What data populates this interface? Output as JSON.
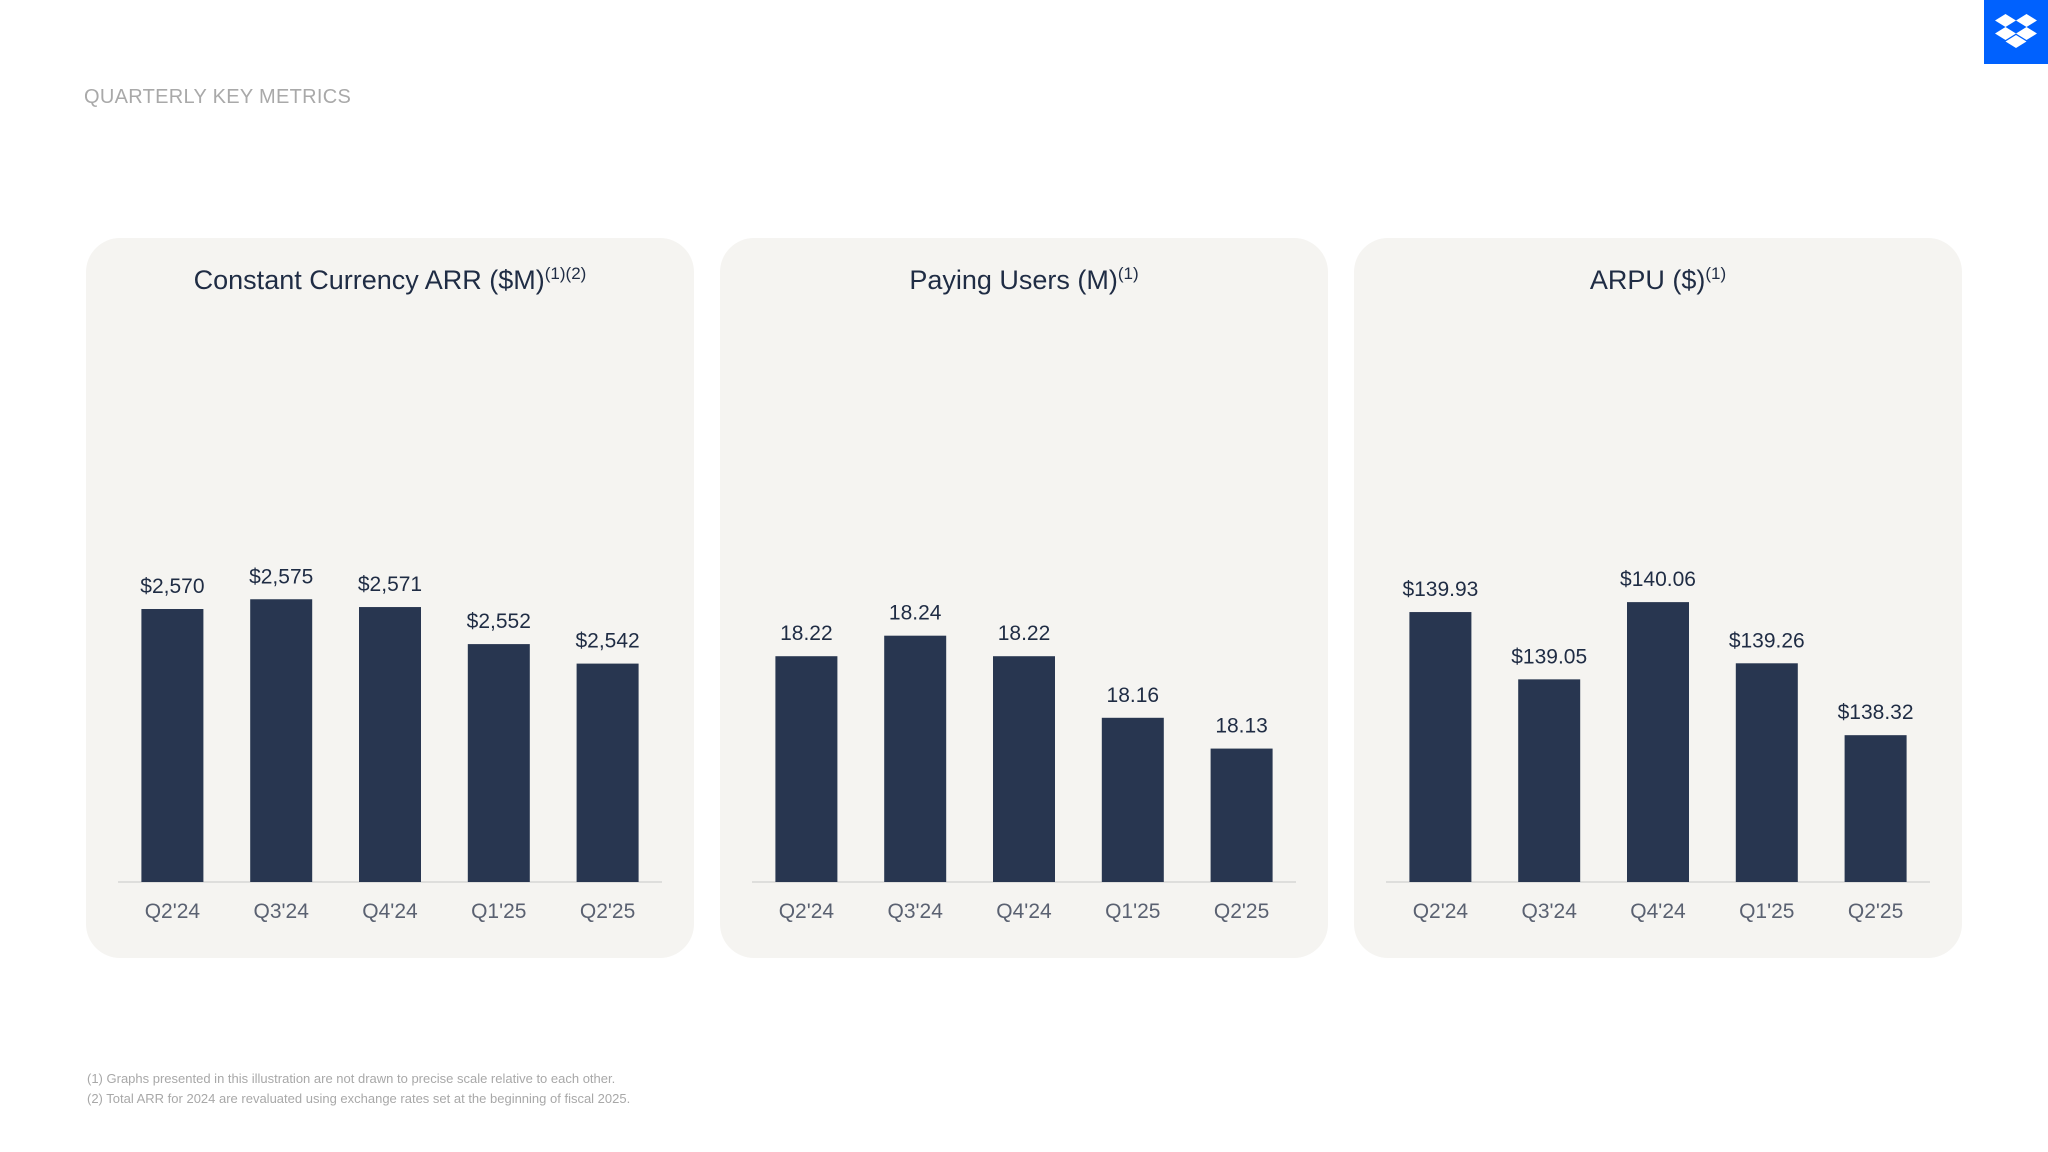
{
  "page_title": "QUARTERLY KEY METRICS",
  "logo_icon": "dropbox-logo-icon",
  "colors": {
    "bar": "#283650",
    "panel": "#f5f4f1",
    "logo": "#0061fe",
    "text": "#1f2c44"
  },
  "footnotes": [
    "(1) Graphs presented in this illustration are not drawn to precise scale relative to each other.",
    "(2) Total ARR for 2024 are revaluated using exchange rates set at the beginning of fiscal 2025."
  ],
  "chart_data": [
    {
      "type": "bar",
      "title": "Constant Currency ARR ($M)",
      "title_sup": "(1)(2)",
      "categories": [
        "Q2'24",
        "Q3'24",
        "Q4'24",
        "Q1'25",
        "Q2'25"
      ],
      "values": [
        2570,
        2575,
        2571,
        2552,
        2542
      ],
      "data_labels": [
        "$2,570",
        "$2,575",
        "$2,571",
        "$2,552",
        "$2,542"
      ],
      "ylim": [
        2430,
        2630
      ]
    },
    {
      "type": "bar",
      "title": "Paying Users (M)",
      "title_sup": "(1)",
      "categories": [
        "Q2'24",
        "Q3'24",
        "Q4'24",
        "Q1'25",
        "Q2'25"
      ],
      "values": [
        18.22,
        18.24,
        18.22,
        18.16,
        18.13
      ],
      "data_labels": [
        "18.22",
        "18.24",
        "18.22",
        "18.16",
        "18.13"
      ],
      "ylim": [
        18.0,
        18.38
      ]
    },
    {
      "type": "bar",
      "title": "ARPU ($)",
      "title_sup": "(1)",
      "categories": [
        "Q2'24",
        "Q3'24",
        "Q4'24",
        "Q1'25",
        "Q2'25"
      ],
      "values": [
        139.93,
        139.05,
        140.06,
        139.26,
        138.32
      ],
      "data_labels": [
        "$139.93",
        "$139.05",
        "$140.06",
        "$139.26",
        "$138.32"
      ],
      "ylim": [
        136.4,
        141.5
      ]
    }
  ]
}
